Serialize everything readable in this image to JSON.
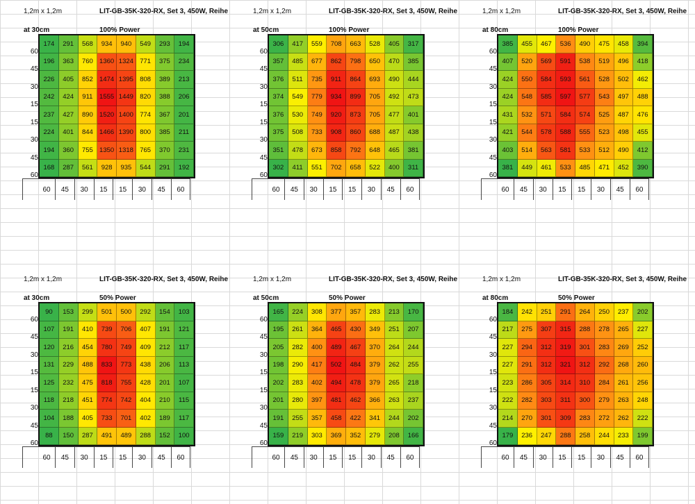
{
  "chart_data": [
    {
      "type": "heatmap",
      "area": "1,2m x 1,2m",
      "title": "LIT-GB-35K-320-RX, Set 3, 450W, Reihe",
      "distance": "at 30cm",
      "power": "100% Power",
      "x_labels": [
        "60",
        "45",
        "30",
        "15",
        "15",
        "30",
        "45",
        "60"
      ],
      "y_labels": [
        "60",
        "45",
        "30",
        "15",
        "15",
        "30",
        "45",
        "60"
      ],
      "values": [
        [
          174,
          291,
          568,
          934,
          940,
          549,
          293,
          194
        ],
        [
          196,
          363,
          760,
          1360,
          1324,
          771,
          375,
          234
        ],
        [
          226,
          405,
          852,
          1474,
          1395,
          808,
          389,
          213
        ],
        [
          242,
          424,
          911,
          1555,
          1449,
          820,
          388,
          206
        ],
        [
          237,
          427,
          890,
          1520,
          1400,
          774,
          367,
          201
        ],
        [
          224,
          401,
          844,
          1466,
          1390,
          800,
          385,
          211
        ],
        [
          194,
          360,
          755,
          1350,
          1318,
          765,
          370,
          231
        ],
        [
          168,
          287,
          561,
          928,
          935,
          544,
          291,
          192
        ]
      ]
    },
    {
      "type": "heatmap",
      "area": "1,2m x 1,2m",
      "title": "LIT-GB-35K-320-RX, Set 3, 450W, Reihe",
      "distance": "at 50cm",
      "power": "100% Power",
      "x_labels": [
        "60",
        "45",
        "30",
        "15",
        "15",
        "30",
        "45",
        "60"
      ],
      "y_labels": [
        "60",
        "45",
        "30",
        "15",
        "15",
        "30",
        "45",
        "60"
      ],
      "values": [
        [
          306,
          417,
          559,
          708,
          663,
          528,
          405,
          317
        ],
        [
          357,
          485,
          677,
          862,
          798,
          650,
          470,
          385
        ],
        [
          376,
          511,
          735,
          911,
          864,
          693,
          490,
          444
        ],
        [
          374,
          549,
          779,
          934,
          899,
          705,
          492,
          473
        ],
        [
          376,
          530,
          749,
          920,
          873,
          705,
          477,
          401
        ],
        [
          375,
          508,
          733,
          908,
          860,
          688,
          487,
          438
        ],
        [
          351,
          478,
          673,
          858,
          792,
          648,
          465,
          381
        ],
        [
          302,
          411,
          551,
          702,
          658,
          522,
          400,
          311
        ]
      ]
    },
    {
      "type": "heatmap",
      "area": "1,2m x 1,2m",
      "title": "LIT-GB-35K-320-RX, Set 3, 450W, Reihe",
      "distance": "at 80cm",
      "power": "100% Power",
      "x_labels": [
        "60",
        "45",
        "30",
        "15",
        "15",
        "30",
        "45",
        "60"
      ],
      "y_labels": [
        "60",
        "45",
        "30",
        "15",
        "15",
        "30",
        "45",
        "60"
      ],
      "values": [
        [
          385,
          455,
          467,
          536,
          490,
          475,
          458,
          394
        ],
        [
          407,
          520,
          569,
          591,
          538,
          519,
          496,
          418
        ],
        [
          424,
          550,
          584,
          593,
          561,
          528,
          502,
          462
        ],
        [
          424,
          548,
          585,
          597,
          577,
          543,
          497,
          488
        ],
        [
          431,
          532,
          571,
          584,
          574,
          525,
          487,
          476
        ],
        [
          421,
          544,
          578,
          588,
          555,
          523,
          498,
          455
        ],
        [
          403,
          514,
          563,
          581,
          533,
          512,
          490,
          412
        ],
        [
          381,
          449,
          461,
          533,
          485,
          471,
          452,
          390
        ]
      ]
    },
    {
      "type": "heatmap",
      "area": "1,2m x 1,2m",
      "title": "LIT-GB-35K-320-RX, Set 3, 450W, Reihe",
      "distance": "at 30cm",
      "power": "50% Power",
      "x_labels": [
        "60",
        "45",
        "30",
        "15",
        "15",
        "30",
        "45",
        "60"
      ],
      "y_labels": [
        "60",
        "45",
        "30",
        "15",
        "15",
        "30",
        "45",
        "60"
      ],
      "values": [
        [
          90,
          153,
          299,
          501,
          500,
          292,
          154,
          103
        ],
        [
          107,
          191,
          410,
          739,
          706,
          407,
          191,
          121
        ],
        [
          120,
          216,
          454,
          780,
          749,
          409,
          212,
          117
        ],
        [
          131,
          229,
          488,
          833,
          773,
          438,
          206,
          113
        ],
        [
          125,
          232,
          475,
          818,
          755,
          428,
          201,
          107
        ],
        [
          118,
          218,
          451,
          774,
          742,
          404,
          210,
          115
        ],
        [
          104,
          188,
          405,
          733,
          701,
          402,
          189,
          117
        ],
        [
          88,
          150,
          287,
          491,
          489,
          288,
          152,
          100
        ]
      ]
    },
    {
      "type": "heatmap",
      "area": "1,2m x 1,2m",
      "title": "LIT-GB-35K-320-RX, Set 3, 450W, Reihe",
      "distance": "at 50cm",
      "power": "50% Power",
      "x_labels": [
        "60",
        "45",
        "30",
        "15",
        "15",
        "30",
        "45",
        "60"
      ],
      "y_labels": [
        "60",
        "45",
        "30",
        "15",
        "15",
        "30",
        "45",
        "60"
      ],
      "values": [
        [
          165,
          224,
          308,
          377,
          357,
          283,
          213,
          170
        ],
        [
          195,
          261,
          364,
          465,
          430,
          349,
          251,
          207
        ],
        [
          205,
          282,
          400,
          489,
          467,
          370,
          264,
          244
        ],
        [
          198,
          290,
          417,
          502,
          484,
          379,
          262,
          255
        ],
        [
          202,
          283,
          402,
          494,
          478,
          379,
          265,
          218
        ],
        [
          201,
          280,
          397,
          481,
          462,
          366,
          263,
          237
        ],
        [
          191,
          255,
          357,
          458,
          422,
          341,
          244,
          202
        ],
        [
          159,
          219,
          303,
          369,
          352,
          279,
          208,
          166
        ]
      ]
    },
    {
      "type": "heatmap",
      "area": "1,2m x 1,2m",
      "title": "LIT-GB-35K-320-RX, Set 3, 450W, Reihe",
      "distance": "at 80cm",
      "power": "50% Power",
      "x_labels": [
        "60",
        "45",
        "30",
        "15",
        "15",
        "30",
        "45",
        "60"
      ],
      "y_labels": [
        "60",
        "45",
        "30",
        "15",
        "15",
        "30",
        "45",
        "60"
      ],
      "values": [
        [
          184,
          242,
          251,
          291,
          264,
          250,
          237,
          202
        ],
        [
          217,
          275,
          307,
          315,
          288,
          278,
          265,
          227
        ],
        [
          227,
          294,
          312,
          319,
          301,
          283,
          269,
          252
        ],
        [
          227,
          291,
          312,
          321,
          312,
          292,
          268,
          260
        ],
        [
          223,
          286,
          305,
          314,
          310,
          284,
          261,
          256
        ],
        [
          222,
          282,
          303,
          311,
          300,
          279,
          263,
          248
        ],
        [
          214,
          270,
          301,
          309,
          283,
          272,
          262,
          222
        ],
        [
          179,
          236,
          247,
          288,
          258,
          244,
          233,
          199
        ]
      ]
    }
  ]
}
